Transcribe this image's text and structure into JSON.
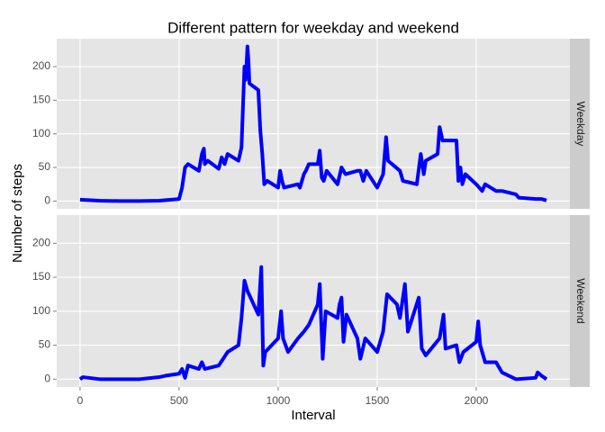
{
  "chart_data": {
    "type": "line",
    "title": "Different pattern for weekday and weekend",
    "x_label": "Interval",
    "y_label": "Number of steps",
    "color": "blue",
    "grid": true,
    "xlim": [
      -117.75,
      2472.75
    ],
    "xticks": [
      0,
      500,
      1000,
      1500,
      2000
    ],
    "ylim": [
      -11.5,
      241.5
    ],
    "yticks": [
      0,
      50,
      100,
      150,
      200
    ],
    "panels": [
      {
        "name": "Weekday",
        "x": [
          0,
          100,
          200,
          300,
          400,
          500,
          515,
          530,
          545,
          600,
          615,
          625,
          630,
          645,
          700,
          715,
          730,
          745,
          800,
          815,
          830,
          835,
          840,
          845,
          850,
          855,
          900,
          910,
          920,
          930,
          945,
          1000,
          1010,
          1020,
          1030,
          1100,
          1110,
          1130,
          1140,
          1155,
          1200,
          1210,
          1220,
          1230,
          1245,
          1300,
          1320,
          1340,
          1400,
          1415,
          1430,
          1445,
          1500,
          1530,
          1545,
          1555,
          1615,
          1630,
          1700,
          1720,
          1735,
          1745,
          1805,
          1815,
          1830,
          1900,
          1910,
          1920,
          1930,
          1945,
          2000,
          2015,
          2030,
          2045,
          2100,
          2130,
          2200,
          2215,
          2300,
          2330,
          2355
        ],
        "values": [
          2,
          0.5,
          0,
          0,
          0.5,
          3,
          20,
          50,
          55,
          45,
          70,
          78,
          55,
          60,
          48,
          65,
          55,
          70,
          60,
          80,
          200,
          180,
          200,
          230,
          210,
          175,
          165,
          105,
          70,
          25,
          30,
          20,
          45,
          30,
          20,
          25,
          20,
          40,
          45,
          55,
          55,
          75,
          35,
          30,
          45,
          25,
          50,
          40,
          45,
          45,
          30,
          45,
          20,
          40,
          95,
          60,
          45,
          30,
          25,
          70,
          40,
          60,
          70,
          110,
          90,
          90,
          30,
          50,
          25,
          40,
          25,
          20,
          15,
          25,
          15,
          15,
          10,
          5,
          3,
          3,
          1
        ]
      },
      {
        "name": "Weekend",
        "x": [
          0,
          15,
          100,
          200,
          300,
          400,
          430,
          500,
          515,
          530,
          545,
          600,
          615,
          630,
          700,
          745,
          800,
          815,
          830,
          845,
          900,
          915,
          925,
          935,
          1000,
          1015,
          1025,
          1050,
          1100,
          1130,
          1155,
          1200,
          1210,
          1225,
          1240,
          1300,
          1310,
          1320,
          1330,
          1345,
          1400,
          1415,
          1440,
          1500,
          1530,
          1550,
          1600,
          1615,
          1640,
          1655,
          1710,
          1725,
          1745,
          1815,
          1835,
          1845,
          1900,
          1915,
          1935,
          2000,
          2010,
          2020,
          2045,
          2100,
          2130,
          2200,
          2300,
          2310,
          2330,
          2355
        ],
        "values": [
          0,
          3,
          0,
          0,
          0,
          3,
          5,
          8,
          15,
          2,
          20,
          15,
          25,
          15,
          20,
          40,
          50,
          90,
          145,
          130,
          95,
          165,
          20,
          40,
          60,
          100,
          60,
          40,
          60,
          70,
          80,
          110,
          140,
          30,
          100,
          90,
          110,
          120,
          55,
          95,
          60,
          30,
          60,
          40,
          70,
          125,
          110,
          90,
          140,
          70,
          120,
          45,
          35,
          60,
          95,
          45,
          50,
          25,
          40,
          55,
          85,
          50,
          25,
          25,
          10,
          0,
          2,
          10,
          5,
          0
        ]
      }
    ]
  }
}
